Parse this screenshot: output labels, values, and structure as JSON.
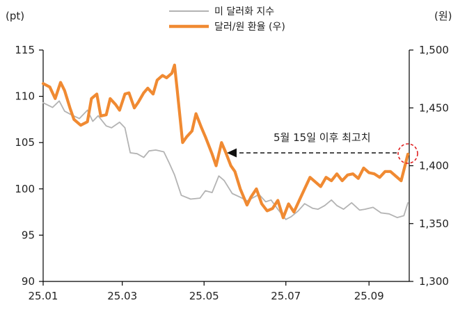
{
  "chart_data": {
    "type": "line",
    "left_axis_unit": "(pt)",
    "right_axis_unit": "(원)",
    "x_ticks": [
      "25.01",
      "25.03",
      "25.05",
      "25.07",
      "25.09"
    ],
    "left_ticks": [
      "90",
      "95",
      "100",
      "105",
      "110",
      "115"
    ],
    "right_ticks": [
      "1,300",
      "1,350",
      "1,400",
      "1,450",
      "1,500"
    ],
    "ylim_left": [
      90,
      115
    ],
    "ylim_right": [
      1300,
      1500
    ],
    "annotation": "5월 15일 이후 최고치",
    "colors": {
      "dxy": "#b3b3b3",
      "usdkrw": "#f08a32",
      "marker": "#e02020",
      "axis": "#000000"
    },
    "series": [
      {
        "name": "미 달러화 지수",
        "axis": "left",
        "x": [
          "2025-01-01",
          "2025-01-08",
          "2025-01-13",
          "2025-01-17",
          "2025-01-22",
          "2025-01-28",
          "2025-02-03",
          "2025-02-07",
          "2025-02-11",
          "2025-02-17",
          "2025-02-21",
          "2025-02-27",
          "2025-03-03",
          "2025-03-07",
          "2025-03-12",
          "2025-03-17",
          "2025-03-21",
          "2025-03-26",
          "2025-04-01",
          "2025-04-05",
          "2025-04-09",
          "2025-04-14",
          "2025-04-21",
          "2025-04-28",
          "2025-05-02",
          "2025-05-07",
          "2025-05-12",
          "2025-05-16",
          "2025-05-22",
          "2025-05-28",
          "2025-06-02",
          "2025-06-06",
          "2025-06-11",
          "2025-06-16",
          "2025-06-20",
          "2025-06-25",
          "2025-07-01",
          "2025-07-05",
          "2025-07-10",
          "2025-07-15",
          "2025-07-21",
          "2025-07-25",
          "2025-07-30",
          "2025-08-04",
          "2025-08-08",
          "2025-08-13",
          "2025-08-19",
          "2025-08-25",
          "2025-08-29",
          "2025-09-04",
          "2025-09-10",
          "2025-09-16",
          "2025-09-22",
          "2025-09-27",
          "2025-09-30"
        ],
        "y": [
          109.3,
          108.8,
          109.5,
          108.4,
          108.0,
          107.6,
          108.5,
          107.3,
          107.9,
          106.8,
          106.6,
          107.2,
          106.6,
          103.9,
          103.8,
          103.4,
          104.1,
          104.2,
          104.0,
          102.8,
          101.5,
          99.3,
          98.9,
          99.0,
          99.8,
          99.6,
          101.4,
          100.9,
          99.5,
          99.1,
          98.7,
          99.0,
          99.4,
          98.6,
          98.8,
          97.8,
          96.7,
          97.0,
          97.6,
          98.4,
          97.9,
          97.8,
          98.2,
          98.8,
          98.2,
          97.8,
          98.5,
          97.7,
          97.8,
          98.0,
          97.4,
          97.3,
          96.9,
          97.1,
          98.5
        ]
      },
      {
        "name": "달러/원 환율 (우)",
        "axis": "right",
        "x": [
          "2025-01-01",
          "2025-01-06",
          "2025-01-10",
          "2025-01-14",
          "2025-01-17",
          "2025-01-21",
          "2025-01-24",
          "2025-01-29",
          "2025-02-03",
          "2025-02-06",
          "2025-02-10",
          "2025-02-13",
          "2025-02-17",
          "2025-02-20",
          "2025-02-24",
          "2025-02-27",
          "2025-03-03",
          "2025-03-06",
          "2025-03-10",
          "2025-03-13",
          "2025-03-17",
          "2025-03-20",
          "2025-03-24",
          "2025-03-27",
          "2025-03-31",
          "2025-04-03",
          "2025-04-07",
          "2025-04-09",
          "2025-04-11",
          "2025-04-15",
          "2025-04-18",
          "2025-04-22",
          "2025-04-25",
          "2025-04-29",
          "2025-05-02",
          "2025-05-07",
          "2025-05-10",
          "2025-05-14",
          "2025-05-17",
          "2025-05-21",
          "2025-05-24",
          "2025-05-28",
          "2025-06-02",
          "2025-06-05",
          "2025-06-09",
          "2025-06-13",
          "2025-06-17",
          "2025-06-21",
          "2025-06-25",
          "2025-06-29",
          "2025-07-03",
          "2025-07-07",
          "2025-07-11",
          "2025-07-15",
          "2025-07-19",
          "2025-07-23",
          "2025-07-27",
          "2025-07-31",
          "2025-08-04",
          "2025-08-08",
          "2025-08-12",
          "2025-08-16",
          "2025-08-20",
          "2025-08-24",
          "2025-08-28",
          "2025-09-01",
          "2025-09-05",
          "2025-09-09",
          "2025-09-13",
          "2025-09-17",
          "2025-09-21",
          "2025-09-25",
          "2025-09-30"
        ],
        "y": [
          1471,
          1468,
          1458,
          1472,
          1465,
          1450,
          1440,
          1435,
          1438,
          1458,
          1462,
          1443,
          1444,
          1458,
          1453,
          1448,
          1462,
          1463,
          1450,
          1455,
          1463,
          1467,
          1462,
          1474,
          1478,
          1476,
          1480,
          1487,
          1465,
          1420,
          1425,
          1430,
          1445,
          1433,
          1425,
          1410,
          1400,
          1420,
          1412,
          1400,
          1395,
          1380,
          1366,
          1373,
          1380,
          1367,
          1361,
          1363,
          1370,
          1355,
          1367,
          1360,
          1370,
          1380,
          1390,
          1386,
          1382,
          1390,
          1387,
          1393,
          1387,
          1392,
          1393,
          1389,
          1398,
          1394,
          1393,
          1390,
          1395,
          1395,
          1391,
          1387,
          1410
        ]
      }
    ]
  }
}
